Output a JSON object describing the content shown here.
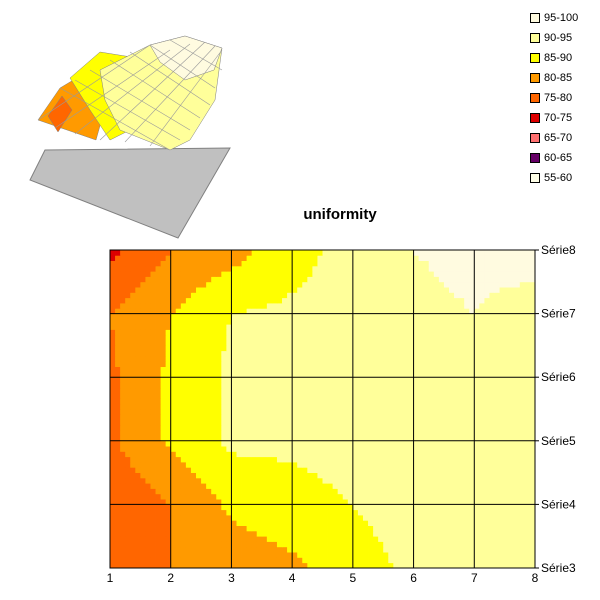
{
  "chart_data": {
    "type": "contour",
    "title": "uniformity",
    "x_categories": [
      "1",
      "2",
      "3",
      "4",
      "5",
      "6",
      "7",
      "8"
    ],
    "series_names": [
      "Série3",
      "Série4",
      "Série5",
      "Série6",
      "Série7",
      "Série8"
    ],
    "legend": [
      {
        "label": "95-100",
        "color": "#fffbe0"
      },
      {
        "label": "90-95",
        "color": "#ffff9a"
      },
      {
        "label": "85-90",
        "color": "#ffff00"
      },
      {
        "label": "80-85",
        "color": "#ff9a00"
      },
      {
        "label": "75-80",
        "color": "#ff6600"
      },
      {
        "label": "70-75",
        "color": "#dd0000"
      },
      {
        "label": "65-70",
        "color": "#ff7070"
      },
      {
        "label": "60-65",
        "color": "#660066"
      },
      {
        "label": "55-60",
        "color": "#ffffe8"
      }
    ],
    "values": [
      [
        78,
        80,
        82,
        84,
        88,
        91,
        92,
        93
      ],
      [
        76,
        80,
        86,
        88,
        90,
        92,
        93,
        93
      ],
      [
        79,
        86,
        91,
        91,
        92,
        93,
        93,
        94
      ],
      [
        79,
        86,
        91,
        91,
        92,
        93,
        93,
        94
      ],
      [
        80,
        85,
        90,
        91,
        92,
        94,
        95,
        93
      ],
      [
        74,
        80,
        83,
        88,
        92,
        95,
        96,
        97
      ]
    ],
    "bands": [
      95,
      90,
      85,
      80,
      75,
      70
    ],
    "legend_position": "top-right",
    "grid": true
  }
}
